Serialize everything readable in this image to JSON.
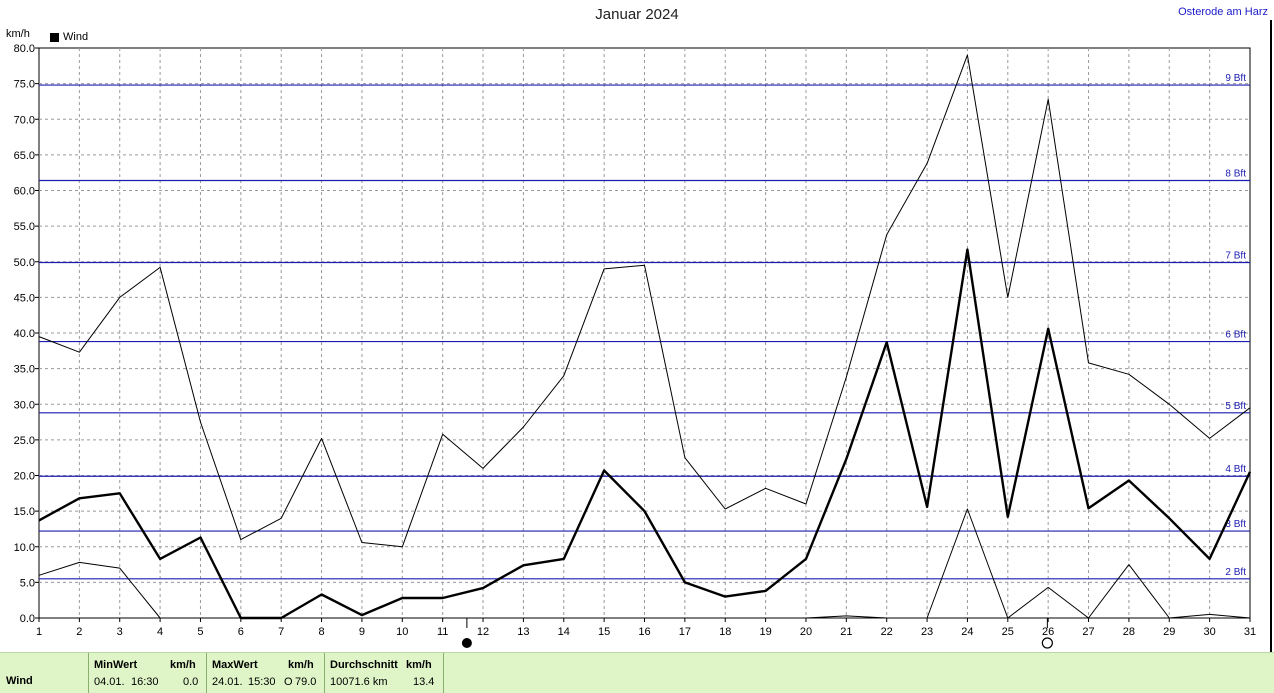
{
  "header": {
    "title": "Januar 2024",
    "station": "Osterode am Harz",
    "y_unit": "km/h",
    "legend_label": "Wind"
  },
  "chart_data": {
    "type": "line",
    "title": "Januar 2024",
    "ylabel": "km/h",
    "ylim": [
      0,
      80
    ],
    "y_ticks": [
      "0.0",
      "5.0",
      "10.0",
      "15.0",
      "20.0",
      "25.0",
      "30.0",
      "35.0",
      "40.0",
      "45.0",
      "50.0",
      "55.0",
      "60.0",
      "65.0",
      "70.0",
      "75.0",
      "80.0"
    ],
    "x": [
      1,
      2,
      3,
      4,
      5,
      6,
      7,
      8,
      9,
      10,
      11,
      12,
      13,
      14,
      15,
      16,
      17,
      18,
      19,
      20,
      21,
      22,
      23,
      24,
      25,
      26,
      27,
      28,
      29,
      30,
      31
    ],
    "grid": true,
    "beaufort_lines": [
      {
        "label": "2 Bft",
        "value": 5.5
      },
      {
        "label": "3 Bft",
        "value": 12.2
      },
      {
        "label": "4 Bft",
        "value": 19.9
      },
      {
        "label": "5 Bft",
        "value": 28.8
      },
      {
        "label": "6 Bft",
        "value": 38.8
      },
      {
        "label": "7 Bft",
        "value": 49.9
      },
      {
        "label": "8 Bft",
        "value": 61.4
      },
      {
        "label": "9 Bft",
        "value": 74.8
      }
    ],
    "series": [
      {
        "key": "max",
        "style": "thin",
        "values": [
          39.5,
          37.3,
          45.0,
          49.2,
          27.5,
          11.0,
          14.0,
          25.2,
          10.6,
          10.0,
          25.8,
          21.0,
          26.8,
          34.0,
          49.0,
          49.5,
          22.5,
          15.3,
          18.2,
          16.0,
          33.8,
          53.8,
          63.8,
          79.0,
          45.0,
          72.8,
          35.8,
          34.2,
          30.0,
          25.2,
          29.5
        ]
      },
      {
        "key": "mean",
        "style": "thick",
        "values": [
          13.7,
          16.8,
          17.5,
          8.3,
          11.3,
          0.0,
          0.0,
          3.3,
          0.4,
          2.8,
          2.8,
          4.2,
          7.4,
          8.3,
          20.7,
          15.0,
          5.0,
          3.0,
          3.8,
          8.3,
          22.3,
          38.7,
          15.6,
          51.7,
          14.2,
          40.6,
          15.4,
          19.3,
          14.0,
          8.3,
          20.5
        ]
      },
      {
        "key": "min",
        "style": "thin",
        "values": [
          6.0,
          7.8,
          7.0,
          0.0,
          0.0,
          0.0,
          0.0,
          0.0,
          0.0,
          0.0,
          0.0,
          0.0,
          0.0,
          0.0,
          0.0,
          0.0,
          0.0,
          0.0,
          0.0,
          0.0,
          0.3,
          0.0,
          0.0,
          15.3,
          0.0,
          4.3,
          0.0,
          7.5,
          0.0,
          0.5,
          0.0
        ]
      }
    ],
    "moon_phases": [
      {
        "day": 11.6,
        "phase": "new"
      },
      {
        "day": 25.98,
        "phase": "full"
      }
    ]
  },
  "footer": {
    "row_label": "Wind",
    "min": {
      "header": "MinWert",
      "unit": "km/h",
      "date": "04.01.",
      "time": "16:30",
      "value": "0.0"
    },
    "max": {
      "header": "MaxWert",
      "unit": "km/h",
      "date": "24.01.",
      "time": "15:30",
      "dir": "O",
      "value": "79.0"
    },
    "avg": {
      "header": "Durchschnitt",
      "unit": "km/h",
      "distance": "10071.6 km",
      "value": "13.4"
    }
  }
}
